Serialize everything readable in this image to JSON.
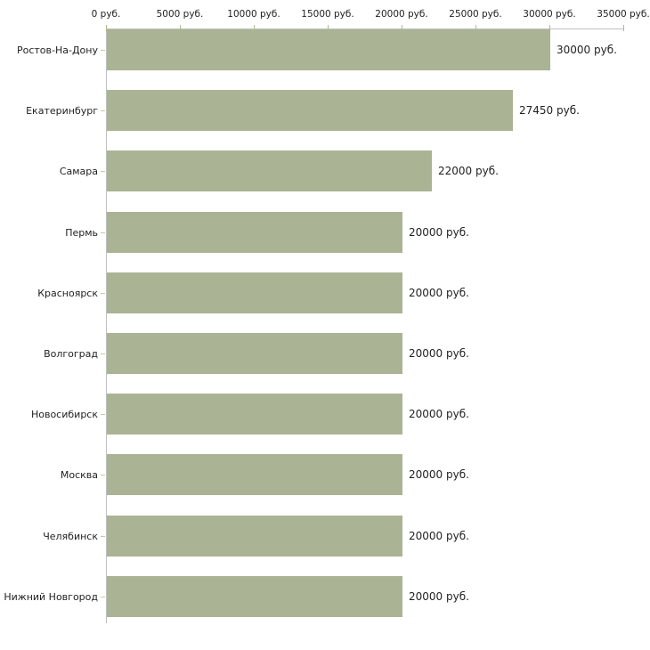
{
  "chart_data": {
    "type": "bar",
    "orientation": "horizontal",
    "title": "",
    "xlabel": "",
    "ylabel": "",
    "unit": "руб.",
    "grid": false,
    "legend": null,
    "xlim": [
      0,
      35000
    ],
    "x_ticks": [
      0,
      5000,
      10000,
      15000,
      20000,
      25000,
      30000,
      35000
    ],
    "x_tick_labels": [
      "0 руб.",
      "5000 руб.",
      "10000 руб.",
      "15000 руб.",
      "20000 руб.",
      "25000 руб.",
      "30000 руб.",
      "35000 руб."
    ],
    "categories": [
      "Ростов-На-Дону",
      "Екатеринбург",
      "Самара",
      "Пермь",
      "Красноярск",
      "Волгоград",
      "Новосибирск",
      "Москва",
      "Челябинск",
      "Нижний Новгород"
    ],
    "values": [
      30000,
      27450,
      22000,
      20000,
      20000,
      20000,
      20000,
      20000,
      20000,
      20000
    ],
    "value_labels": [
      "30000 руб.",
      "27450 руб.",
      "22000 руб.",
      "20000 руб.",
      "20000 руб.",
      "20000 руб.",
      "20000 руб.",
      "20000 руб.",
      "20000 руб.",
      "20000 руб."
    ],
    "colors": {
      "bar": "#aab394",
      "axis_line": "#c0c0c0",
      "tick_mark": "#b3b786",
      "category_tick": "#c6c9a4",
      "text": "#1f1f1f",
      "background": "#ffffff"
    }
  }
}
